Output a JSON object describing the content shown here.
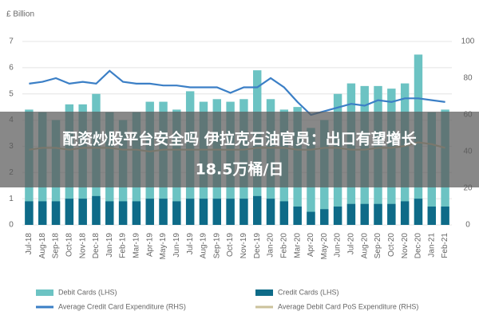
{
  "chart_data": {
    "type": "bar-line",
    "y_label": "£ Billion",
    "categories": [
      "Jul-18",
      "Aug-18",
      "Sep-18",
      "Oct-18",
      "Nov-18",
      "Dec-18",
      "Jan-19",
      "Feb-19",
      "Mar-19",
      "Apr-19",
      "May-19",
      "Jun-19",
      "Jul-19",
      "Aug-19",
      "Sep-19",
      "Oct-19",
      "Nov-19",
      "Dec-19",
      "Jan-20",
      "Feb-20",
      "Mar-20",
      "Apr-20",
      "May-20",
      "Jun-20",
      "Jul-20",
      "Aug-20",
      "Sep-20",
      "Oct-20",
      "Nov-20",
      "Dec-20",
      "Jan-21",
      "Feb-21"
    ],
    "series": [
      {
        "name": "Debit Cards (LHS)",
        "kind": "bar",
        "color": "#6cc3c3",
        "values": [
          4.4,
          4.3,
          4.0,
          4.6,
          4.6,
          5.0,
          4.3,
          4.0,
          4.3,
          4.7,
          4.7,
          4.4,
          5.1,
          4.7,
          4.8,
          4.7,
          4.8,
          5.9,
          4.8,
          4.4,
          4.5,
          3.7,
          4.0,
          5.0,
          5.4,
          5.3,
          5.3,
          5.2,
          5.4,
          6.5,
          4.3,
          4.4
        ]
      },
      {
        "name": "Credit Cards (LHS)",
        "kind": "bar",
        "color": "#0e6b88",
        "values": [
          0.9,
          0.9,
          0.9,
          1.0,
          1.0,
          1.1,
          0.9,
          0.9,
          0.9,
          1.0,
          1.0,
          0.9,
          1.0,
          1.0,
          1.0,
          1.0,
          1.0,
          1.1,
          1.0,
          0.9,
          0.7,
          0.5,
          0.6,
          0.7,
          0.8,
          0.8,
          0.8,
          0.8,
          0.9,
          1.0,
          0.7,
          0.7
        ]
      },
      {
        "name": "Average Credit Card Expenditure (RHS)",
        "kind": "line",
        "axis": "y2",
        "color": "#3b7fc6",
        "values": [
          77,
          78,
          80,
          77,
          78,
          77,
          84,
          78,
          77,
          77,
          76,
          76,
          75,
          75,
          75,
          72,
          75,
          75,
          80,
          75,
          67,
          60,
          62,
          64,
          66,
          65,
          68,
          67,
          69,
          69,
          68,
          67
        ]
      },
      {
        "name": "Average Debit Card PoS Expenditure (RHS)",
        "kind": "line",
        "axis": "y2",
        "color": "#cbc29b",
        "values": [
          41,
          42,
          42,
          41,
          42,
          42,
          42,
          41,
          41,
          40,
          41,
          41,
          41,
          41,
          41,
          41,
          41,
          42,
          42,
          42,
          41,
          41,
          42,
          42,
          41,
          41,
          42,
          42,
          43,
          45,
          44,
          42
        ]
      }
    ],
    "ylim": [
      0,
      7
    ],
    "yticks": [
      0,
      1,
      2,
      3,
      4,
      5,
      6,
      7
    ],
    "y2lim": [
      0,
      100
    ],
    "y2ticks": [
      0,
      20,
      40,
      60,
      80,
      100
    ],
    "grid": true
  },
  "banner": {
    "lines": [
      "配资炒股平台安全吗 伊拉克石油官员：出口有望增长",
      "18.5万桶/日"
    ]
  }
}
